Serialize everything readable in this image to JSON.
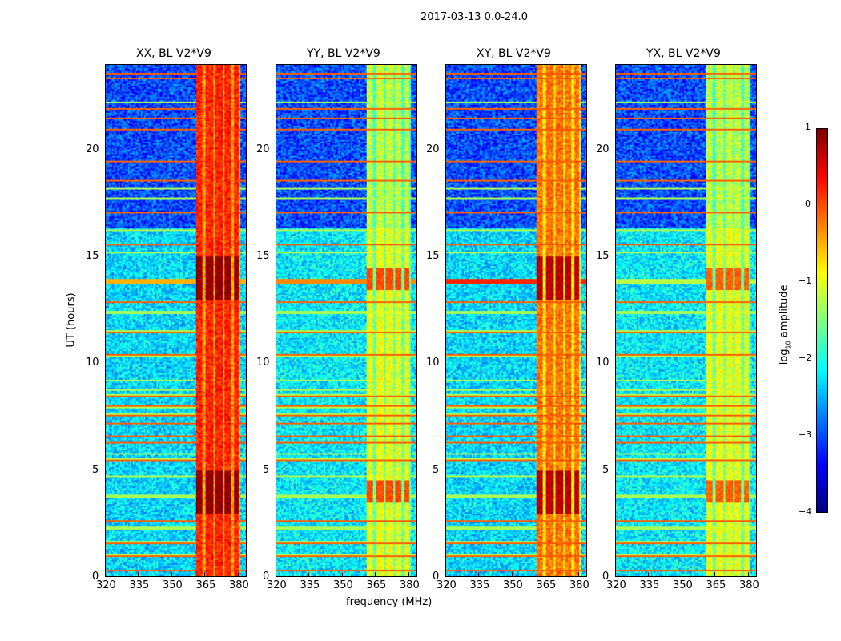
{
  "suptitle": "2017-03-13 0.0-24.0",
  "colorbar": {
    "label_main": "log",
    "label_sub": "10",
    "label_rest": " amplitude",
    "ticks": [
      "1",
      "0",
      "−1",
      "−2",
      "−3",
      "−4"
    ],
    "values": [
      1,
      0,
      -1,
      -2,
      -3,
      -4
    ],
    "range": [
      -4,
      1
    ],
    "colormap": "jet"
  },
  "chart_data": {
    "type": "heatmap",
    "title": "2017-03-13 0.0-24.0",
    "xlabel": "frequency (MHz)",
    "ylabel": "UT (hours)",
    "xlim": [
      320,
      384
    ],
    "ylim": [
      0,
      24
    ],
    "xticks": [
      "320",
      "335",
      "350",
      "365",
      "380"
    ],
    "xtick_values": [
      320,
      335,
      350,
      365,
      380
    ],
    "yticks": [
      "0",
      "5",
      "10",
      "15",
      "20"
    ],
    "ytick_values": [
      0,
      5,
      10,
      15,
      20
    ],
    "zlabel": "log10 amplitude",
    "zlim": [
      -4,
      1
    ],
    "band_columns_mhz": [
      [
        361,
        364
      ],
      [
        365,
        368.5
      ],
      [
        369.5,
        373
      ],
      [
        374,
        377
      ],
      [
        378,
        380.5
      ]
    ],
    "rfi_rows_hours": [
      0.3,
      1.0,
      1.6,
      2.3,
      2.6,
      3.8,
      4.7,
      5.5,
      5.8,
      6.3,
      6.6,
      7.2,
      7.6,
      8.0,
      8.5,
      8.8,
      9.2,
      10.4,
      11.5,
      12.4,
      12.9,
      15.2,
      15.6,
      16.3,
      17.1,
      17.8,
      18.2,
      18.6,
      19.5,
      21.0,
      21.5,
      22.0,
      22.3,
      23.4,
      23.6
    ],
    "panels": [
      {
        "title": "XX, BL V2*V9",
        "background_early": -2.3,
        "background_late": -3.0,
        "band_level": 0.2,
        "peak_level": 0.9,
        "peak_hours": [
          [
            3,
            5
          ],
          [
            13,
            15
          ]
        ],
        "line_13_9": -0.5
      },
      {
        "title": "YY, BL V2*V9",
        "background_early": -2.2,
        "background_late": -3.0,
        "band_level": -1.0,
        "peak_level": 0.0,
        "peak_hours": [
          [
            3.5,
            4.5
          ],
          [
            13.5,
            14.5
          ]
        ],
        "line_13_9": -0.3
      },
      {
        "title": "XY, BL V2*V9",
        "background_early": -2.3,
        "background_late": -3.0,
        "band_level": -0.2,
        "peak_level": 0.7,
        "peak_hours": [
          [
            3,
            5
          ],
          [
            13,
            15
          ]
        ],
        "line_13_9": 0.2
      },
      {
        "title": "YX, BL V2*V9",
        "background_early": -2.2,
        "background_late": -3.0,
        "band_level": -1.0,
        "peak_level": -0.1,
        "peak_hours": [
          [
            3.5,
            4.5
          ],
          [
            13.5,
            14.5
          ]
        ],
        "line_13_9": -1.2
      }
    ]
  }
}
